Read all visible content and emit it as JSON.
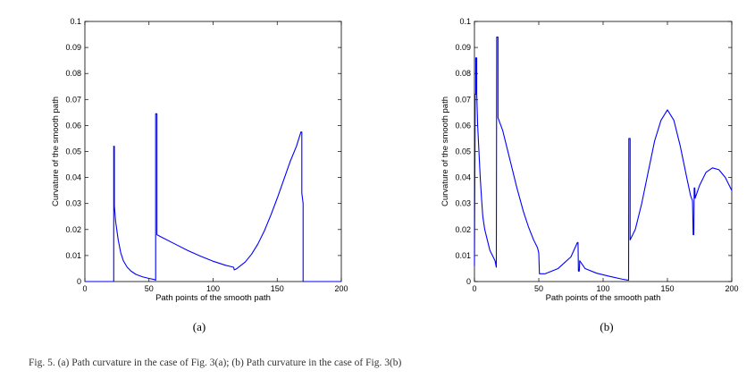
{
  "chart_data": [
    {
      "type": "line",
      "panel_label": "(a)",
      "xlabel": "Path points of the smooth path",
      "ylabel": "Curvature of the smooth path",
      "xlim": [
        0,
        200
      ],
      "ylim": [
        0,
        0.1
      ],
      "xticks": [
        0,
        50,
        100,
        150,
        200
      ],
      "yticks": [
        0,
        0.01,
        0.02,
        0.03,
        0.04,
        0.05,
        0.06,
        0.07,
        0.08,
        0.09,
        0.1
      ],
      "grid": false,
      "series": [
        {
          "name": "curvature",
          "color": "#0000ff",
          "points": [
            [
              0,
              0
            ],
            [
              22.5,
              0
            ],
            [
              22.5,
              0.052
            ],
            [
              23,
              0.052
            ],
            [
              23,
              0.029
            ],
            [
              24,
              0.023
            ],
            [
              26,
              0.016
            ],
            [
              28,
              0.011
            ],
            [
              30,
              0.008
            ],
            [
              33,
              0.0055
            ],
            [
              36,
              0.004
            ],
            [
              40,
              0.0027
            ],
            [
              45,
              0.0018
            ],
            [
              50,
              0.0012
            ],
            [
              54,
              0.0008
            ],
            [
              55.2,
              0.0005
            ],
            [
              55.2,
              0.0645
            ],
            [
              56.2,
              0.0645
            ],
            [
              56.2,
              0.018
            ],
            [
              60,
              0.017
            ],
            [
              70,
              0.0145
            ],
            [
              80,
              0.012
            ],
            [
              90,
              0.0098
            ],
            [
              100,
              0.0078
            ],
            [
              110,
              0.0062
            ],
            [
              116,
              0.0055
            ],
            [
              116.5,
              0.0045
            ],
            [
              118,
              0.0048
            ],
            [
              125,
              0.0075
            ],
            [
              130,
              0.0105
            ],
            [
              135,
              0.0145
            ],
            [
              140,
              0.0195
            ],
            [
              145,
              0.0255
            ],
            [
              150,
              0.032
            ],
            [
              155,
              0.039
            ],
            [
              160,
              0.046
            ],
            [
              165,
              0.052
            ],
            [
              168.5,
              0.0575
            ],
            [
              169.2,
              0.0575
            ],
            [
              169.2,
              0.034
            ],
            [
              170.2,
              0.03
            ],
            [
              170.2,
              0
            ],
            [
              200,
              0
            ]
          ]
        }
      ]
    },
    {
      "type": "line",
      "panel_label": "(b)",
      "xlabel": "Path points of the smooth path",
      "ylabel": "Curvature of the smooth path",
      "xlim": [
        0,
        200
      ],
      "ylim": [
        0,
        0.1
      ],
      "xticks": [
        0,
        50,
        100,
        150,
        200
      ],
      "yticks": [
        0,
        0.01,
        0.02,
        0.03,
        0.04,
        0.05,
        0.06,
        0.07,
        0.08,
        0.09,
        0.1
      ],
      "grid": false,
      "series": [
        {
          "name": "curvature",
          "color": "#0000ff",
          "points": [
            [
              0,
              0.006
            ],
            [
              0.6,
              0.072
            ],
            [
              1,
              0.072
            ],
            [
              1,
              0.086
            ],
            [
              1.8,
              0.086
            ],
            [
              1.8,
              0.072
            ],
            [
              2.5,
              0.06
            ],
            [
              3.5,
              0.05
            ],
            [
              4.5,
              0.04
            ],
            [
              5.5,
              0.032
            ],
            [
              6.5,
              0.025
            ],
            [
              8,
              0.02
            ],
            [
              10,
              0.016
            ],
            [
              12,
              0.012
            ],
            [
              14,
              0.01
            ],
            [
              16,
              0.008
            ],
            [
              17,
              0.0055
            ],
            [
              17.3,
              0.094
            ],
            [
              18.3,
              0.094
            ],
            [
              18.3,
              0.063
            ],
            [
              22,
              0.058
            ],
            [
              28,
              0.046
            ],
            [
              33,
              0.036
            ],
            [
              38,
              0.027
            ],
            [
              42,
              0.021
            ],
            [
              46,
              0.016
            ],
            [
              49,
              0.013
            ],
            [
              50,
              0.011
            ],
            [
              50.5,
              0.003
            ],
            [
              55,
              0.003
            ],
            [
              65,
              0.005
            ],
            [
              75,
              0.0095
            ],
            [
              80,
              0.015
            ],
            [
              80.5,
              0.015
            ],
            [
              80.8,
              0.004
            ],
            [
              81.5,
              0.004
            ],
            [
              81.8,
              0.008
            ],
            [
              86,
              0.005
            ],
            [
              95,
              0.0032
            ],
            [
              105,
              0.002
            ],
            [
              115,
              0.0009
            ],
            [
              119.8,
              0.0005
            ],
            [
              120,
              0.055
            ],
            [
              121,
              0.055
            ],
            [
              121,
              0.016
            ],
            [
              125,
              0.02
            ],
            [
              130,
              0.03
            ],
            [
              135,
              0.042
            ],
            [
              140,
              0.054
            ],
            [
              145,
              0.062
            ],
            [
              150,
              0.066
            ],
            [
              155,
              0.062
            ],
            [
              160,
              0.052
            ],
            [
              165,
              0.04
            ],
            [
              168,
              0.033
            ],
            [
              169.5,
              0.031
            ],
            [
              170,
              0.018
            ],
            [
              170.5,
              0.018
            ],
            [
              170.8,
              0.036
            ],
            [
              171.3,
              0.036
            ],
            [
              171.5,
              0.032
            ],
            [
              175,
              0.037
            ],
            [
              180,
              0.042
            ],
            [
              185,
              0.0437
            ],
            [
              190,
              0.043
            ],
            [
              195,
              0.04
            ],
            [
              200,
              0.035
            ]
          ]
        }
      ]
    }
  ],
  "caption": "Fig. 5.  (a) Path curvature in the case of Fig. 3(a); (b) Path curvature in the case of Fig. 3(b)"
}
